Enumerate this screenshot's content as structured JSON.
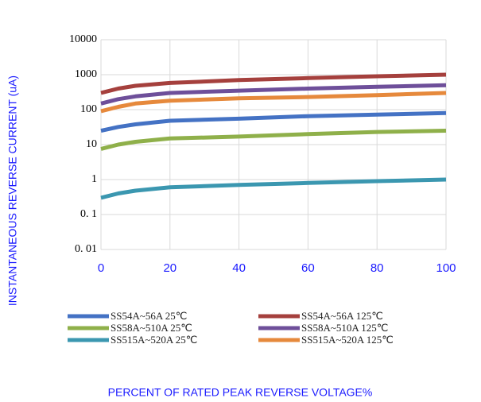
{
  "chart_data": {
    "type": "line",
    "xlabel": "PERCENT OF RATED PEAK REVERSE VOLTAGE%",
    "ylabel": "INSTANTANEOUS REVERSE CURRENT (uA)",
    "x": [
      0,
      5,
      10,
      20,
      40,
      60,
      80,
      100
    ],
    "series": [
      {
        "name": "SS54A~56A  25℃",
        "color": "#4472c4",
        "values": [
          25,
          32,
          38,
          48,
          55,
          65,
          72,
          80
        ]
      },
      {
        "name": "SS54A~56A  125℃",
        "color": "#a5403d",
        "values": [
          300,
          400,
          480,
          580,
          700,
          800,
          900,
          1000
        ]
      },
      {
        "name": "SS58A~510A  25℃",
        "color": "#8fb04a",
        "values": [
          7.5,
          10,
          12,
          15,
          17,
          20,
          23,
          25
        ]
      },
      {
        "name": "SS58A~510A  125℃",
        "color": "#6e4f9a",
        "values": [
          150,
          200,
          240,
          300,
          350,
          400,
          450,
          500
        ]
      },
      {
        "name": "SS515A~520A  25℃",
        "color": "#3b97b0",
        "values": [
          0.3,
          0.4,
          0.48,
          0.6,
          0.7,
          0.8,
          0.9,
          1
        ]
      },
      {
        "name": "SS515A~520A  125℃",
        "color": "#e6893c",
        "values": [
          90,
          120,
          150,
          180,
          210,
          230,
          260,
          300
        ]
      }
    ],
    "xlim": [
      0,
      100
    ],
    "xticks": [
      0,
      20,
      40,
      60,
      80,
      100
    ],
    "ylim": [
      0.01,
      10000
    ],
    "yticks": [
      {
        "value": 0.01,
        "label": "0. 01"
      },
      {
        "value": 0.1,
        "label": "0. 1"
      },
      1,
      10,
      100,
      1000,
      10000
    ],
    "log_y": true,
    "grid": true,
    "legend": "bottom"
  }
}
